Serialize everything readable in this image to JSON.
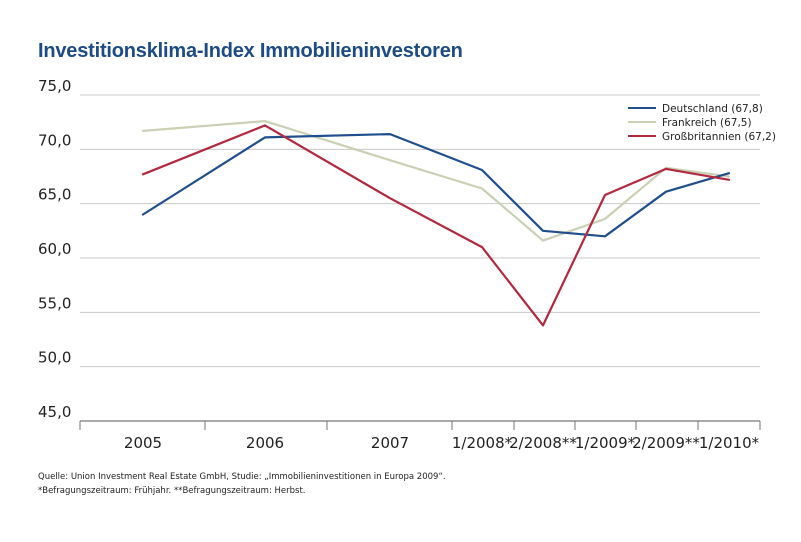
{
  "chart_data": {
    "type": "line",
    "title": "Investitionsklima-Index Immobilieninvestoren",
    "categories": [
      "2005",
      "2006",
      "2007",
      "1/2008*",
      "2/2008**",
      "1/2009*",
      "2/2009**",
      "1/2010*"
    ],
    "y_ticks": [
      "75,0",
      "70,0",
      "65,0",
      "60,0",
      "55,0",
      "50,0",
      "45,0"
    ],
    "ylim": [
      45,
      75
    ],
    "grid": "horizontal",
    "legend_position": "top-right",
    "series": [
      {
        "name": "Deutschland (67,8)",
        "color": "#1f4e8c",
        "values": [
          64.0,
          71.1,
          71.4,
          68.1,
          62.5,
          62.0,
          66.1,
          67.8
        ]
      },
      {
        "name": "Frankreich (67,5)",
        "color": "#c9d0b3",
        "values": [
          71.7,
          72.6,
          69.0,
          66.4,
          61.6,
          63.6,
          68.3,
          67.5
        ]
      },
      {
        "name": "Großbritannien (67,2)",
        "color": "#b3283f",
        "values": [
          67.7,
          72.2,
          65.5,
          61.0,
          53.8,
          65.8,
          68.2,
          67.2
        ]
      }
    ]
  },
  "footnotes": {
    "source": "Quelle: Union Investment Real Estate GmbH, Studie: „Immobilieninvestitionen in Europa 2009“.",
    "survey": "*Befragungszeitraum: Frühjahr. **Befragungszeitraum: Herbst."
  }
}
